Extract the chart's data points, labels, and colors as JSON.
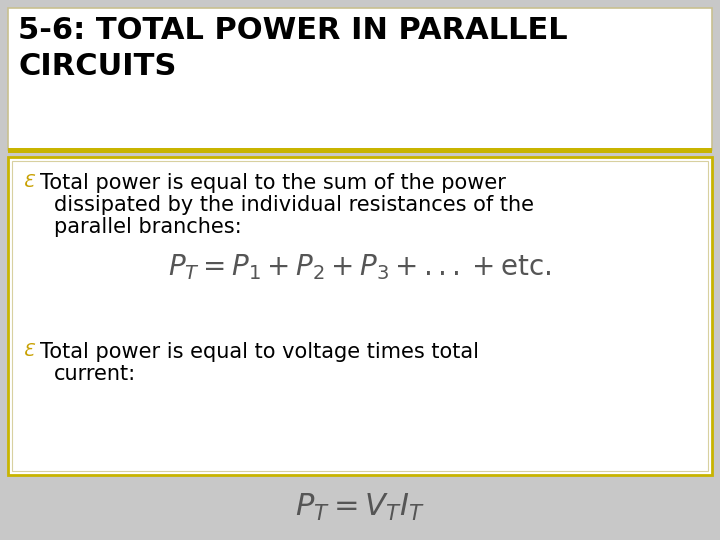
{
  "title_line1": "5-6: TOTAL POWER IN PARALLEL",
  "title_line2": "CIRCUITS",
  "title_color": "#000000",
  "slide_bg": "#c8c8c8",
  "title_box_bg": "#ffffff",
  "title_box_border": "#c8c090",
  "separator_color": "#c8b400",
  "content_box_bg": "#ffffff",
  "content_box_border_outer": "#c8b400",
  "content_box_border_inner": "#d8d0a0",
  "bullet_color": "#c8a000",
  "bullet1_text_line1": "Total power is equal to the sum of the power",
  "bullet1_text_line2": "dissipated by the individual resistances of the",
  "bullet1_text_line3": "parallel branches:",
  "formula1": "$P_T = P_1 + P_2 + P_3 + ... + \\mathrm{etc.}$",
  "bullet2_text_line1": "Total power is equal to voltage times total",
  "bullet2_text_line2": "current:",
  "formula2": "$P_T = V_T I_T$",
  "formula_color": "#555555",
  "text_color": "#000000",
  "title_fontsize": 22,
  "body_fontsize": 15,
  "formula1_fontsize": 20,
  "formula2_fontsize": 22
}
